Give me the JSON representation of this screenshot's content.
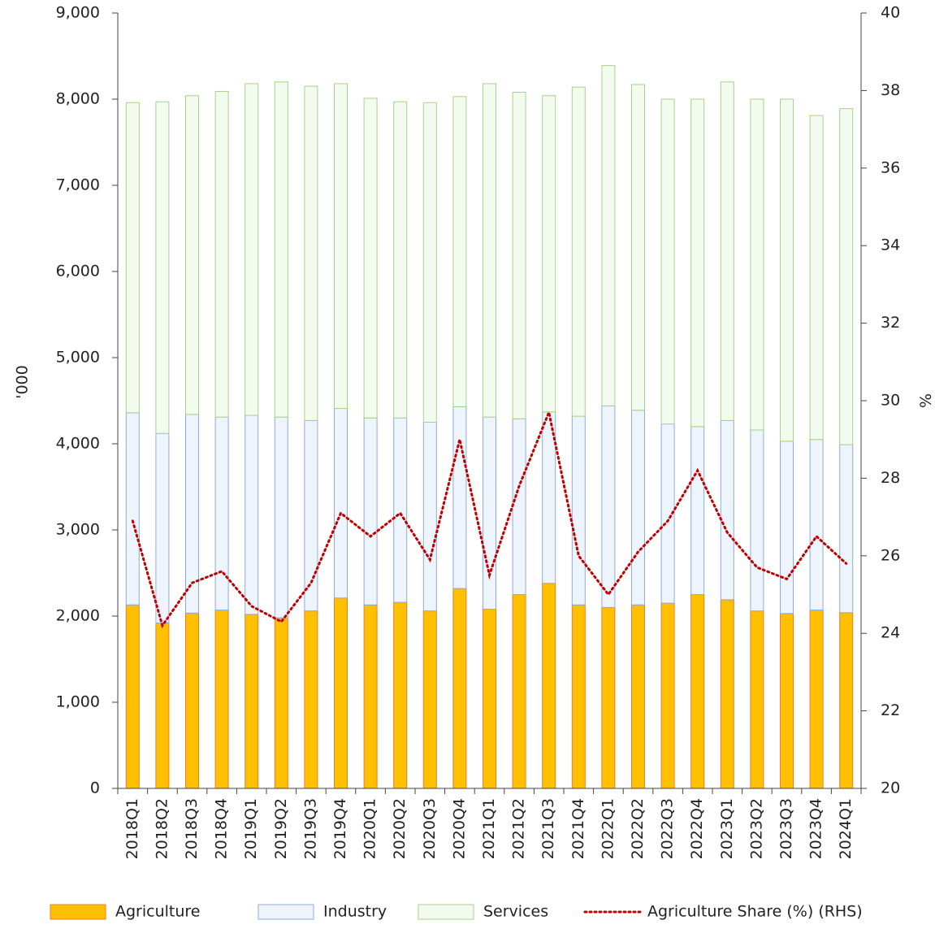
{
  "chart_data": {
    "type": "bar",
    "categories": [
      "2018Q1",
      "2018Q2",
      "2018Q3",
      "2018Q4",
      "2019Q1",
      "2019Q2",
      "2019Q3",
      "2019Q4",
      "2020Q1",
      "2020Q2",
      "2020Q3",
      "2020Q4",
      "2021Q1",
      "2021Q2",
      "2021Q3",
      "2021Q4",
      "2022Q1",
      "2022Q2",
      "2022Q3",
      "2022Q4",
      "2023Q1",
      "2023Q2",
      "2023Q3",
      "2023Q4",
      "2024Q1"
    ],
    "stacked": true,
    "series": [
      {
        "name": "Agriculture",
        "color": "#ffc000",
        "stroke": "#ed7d31",
        "values": [
          2130,
          1920,
          2035,
          2070,
          2020,
          1980,
          2060,
          2210,
          2130,
          2160,
          2060,
          2320,
          2080,
          2250,
          2380,
          2130,
          2100,
          2130,
          2150,
          2250,
          2190,
          2060,
          2030,
          2070,
          2040
        ]
      },
      {
        "name": "Industry",
        "color": "#eef4fb",
        "stroke": "#8faadc",
        "values": [
          2230,
          2200,
          2305,
          2240,
          2310,
          2330,
          2210,
          2200,
          2170,
          2140,
          2190,
          2110,
          2230,
          2040,
          1990,
          2190,
          2340,
          2260,
          2080,
          1950,
          2080,
          2100,
          2000,
          1980,
          1950
        ]
      },
      {
        "name": "Services",
        "color": "#f3faee",
        "stroke": "#a9d18e",
        "values": [
          3600,
          3850,
          3700,
          3780,
          3850,
          3890,
          3880,
          3770,
          3710,
          3670,
          3710,
          3600,
          3870,
          3790,
          3670,
          3820,
          3950,
          3780,
          3770,
          3800,
          3930,
          3840,
          3970,
          3760,
          3900
        ]
      },
      {
        "name": "Agriculture Share (%) (RHS)",
        "type": "line",
        "axis": "y2",
        "color": "#c00000",
        "values": [
          26.9,
          24.2,
          25.3,
          25.6,
          24.7,
          24.3,
          25.3,
          27.1,
          26.5,
          27.1,
          25.9,
          29.0,
          25.5,
          27.8,
          29.7,
          26.0,
          25.0,
          26.1,
          26.9,
          28.2,
          26.6,
          25.7,
          25.4,
          26.5,
          25.8
        ]
      }
    ],
    "ylabel": "'000",
    "y2label": "%",
    "ylim": [
      0,
      9000
    ],
    "yticks": [
      0,
      {
        "value": 1000,
        "label": "1,000"
      },
      {
        "value": 2000,
        "label": "2,000"
      },
      {
        "value": 3000,
        "label": "3,000"
      },
      {
        "value": 4000,
        "label": "4,000"
      },
      {
        "value": 5000,
        "label": "5,000"
      },
      {
        "value": 6000,
        "label": "6,000"
      },
      {
        "value": 7000,
        "label": "7,000"
      },
      {
        "value": 8000,
        "label": "8,000"
      },
      {
        "value": 9000,
        "label": "9,000"
      }
    ],
    "y2lim": [
      20,
      40
    ],
    "y2ticks": [
      20,
      22,
      24,
      26,
      28,
      30,
      32,
      34,
      36,
      38,
      40
    ],
    "legend": "bottom"
  }
}
